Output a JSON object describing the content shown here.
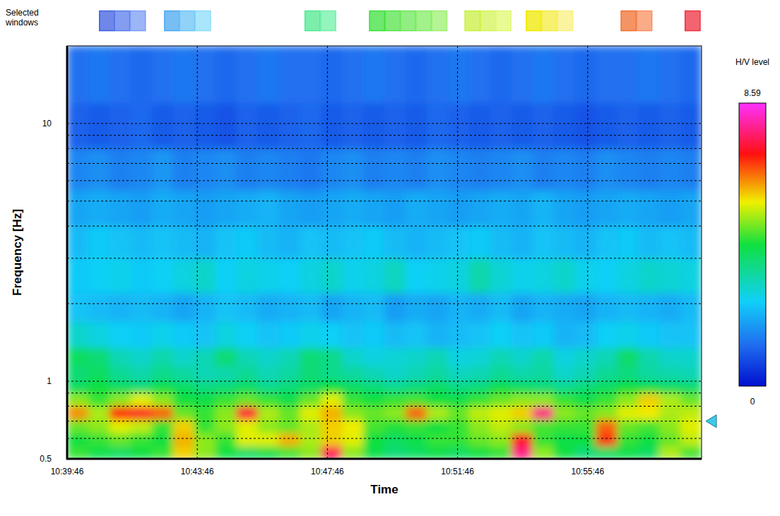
{
  "chart_data": {
    "type": "heatmap",
    "x_label": "Time",
    "y_label": "Frequency [Hz]",
    "log": "y",
    "grid": true,
    "xlim": [
      "10:39:46",
      "10:59:16"
    ],
    "xticks": [
      "10:39:46",
      "10:43:46",
      "10:47:46",
      "10:51:46",
      "10:55:46"
    ],
    "ylim": [
      0.5,
      20
    ],
    "yticks": [
      0.5,
      1,
      10
    ],
    "yminor": [
      0.6,
      0.7,
      0.8,
      0.9,
      2,
      3,
      4,
      5,
      6,
      7,
      8,
      9
    ],
    "x_edges": [
      "10:39:46",
      "10:40:25",
      "10:41:04",
      "10:41:43",
      "10:42:22",
      "10:43:01",
      "10:43:40",
      "10:44:19",
      "10:44:58",
      "10:45:37",
      "10:46:16",
      "10:46:55",
      "10:47:34",
      "10:48:13",
      "10:48:52",
      "10:49:31",
      "10:50:10",
      "10:50:49",
      "10:51:28",
      "10:52:07",
      "10:52:46",
      "10:53:25",
      "10:54:04",
      "10:54:43",
      "10:55:22",
      "10:56:01",
      "10:56:40",
      "10:57:19",
      "10:57:58",
      "10:58:37",
      "10:59:16"
    ],
    "y_edges": [
      0.5,
      0.56,
      0.63,
      0.71,
      0.8,
      0.9,
      1.0,
      1.15,
      1.35,
      1.7,
      2.2,
      3,
      4,
      5.5,
      8,
      12,
      20
    ],
    "values": [
      [
        4.5,
        4.2,
        4.0,
        4.3,
        4.5,
        5.8,
        5.0,
        4.3,
        4.0,
        4.2,
        4.6,
        5.0,
        7.5,
        5.0,
        4.2,
        3.8,
        4.0,
        4.2,
        4.0,
        4.3,
        4.5,
        7.8,
        5.0,
        4.3,
        3.8,
        4.0,
        4.2,
        4.0,
        5.2,
        4.6
      ],
      [
        4.3,
        4.5,
        4.8,
        4.5,
        4.3,
        6.0,
        5.0,
        4.5,
        5.5,
        5.5,
        6.0,
        5.2,
        5.8,
        5.5,
        4.3,
        4.0,
        4.2,
        4.5,
        4.5,
        4.8,
        5.0,
        7.2,
        4.5,
        4.2,
        4.3,
        6.8,
        4.5,
        4.3,
        4.8,
        5.3
      ],
      [
        4.8,
        5.0,
        5.5,
        5.3,
        4.5,
        5.8,
        4.5,
        5.0,
        5.5,
        5.0,
        4.8,
        5.2,
        5.8,
        5.6,
        4.6,
        4.4,
        4.5,
        4.3,
        4.5,
        5.0,
        5.3,
        5.0,
        4.6,
        4.5,
        4.5,
        6.5,
        4.8,
        4.6,
        5.0,
        5.5
      ],
      [
        6.2,
        5.2,
        7.0,
        7.2,
        6.5,
        4.8,
        4.5,
        5.0,
        7.3,
        5.2,
        4.8,
        5.5,
        6.0,
        5.0,
        4.8,
        5.0,
        6.5,
        5.2,
        4.8,
        5.3,
        5.5,
        5.8,
        7.8,
        5.0,
        4.8,
        5.0,
        5.5,
        5.6,
        5.2,
        5.3
      ],
      [
        5.0,
        4.5,
        5.0,
        5.5,
        5.0,
        4.3,
        4.2,
        4.5,
        4.8,
        4.5,
        4.2,
        4.8,
        5.5,
        4.5,
        4.3,
        4.5,
        4.6,
        4.3,
        4.2,
        4.5,
        4.8,
        5.0,
        5.0,
        4.5,
        4.2,
        4.5,
        5.0,
        5.8,
        5.2,
        4.8
      ],
      [
        4.0,
        4.3,
        4.0,
        3.8,
        4.2,
        4.0,
        3.7,
        3.8,
        4.0,
        3.6,
        3.8,
        4.0,
        4.3,
        4.0,
        3.8,
        3.6,
        3.8,
        4.0,
        3.7,
        3.8,
        4.2,
        4.0,
        3.8,
        3.6,
        3.8,
        4.0,
        4.3,
        4.2,
        4.0,
        3.9
      ],
      [
        3.8,
        4.0,
        3.5,
        3.3,
        3.6,
        3.4,
        3.2,
        3.3,
        3.5,
        3.2,
        3.4,
        3.8,
        3.6,
        3.4,
        3.2,
        3.0,
        3.2,
        3.4,
        3.1,
        3.2,
        3.5,
        3.3,
        3.4,
        3.0,
        3.2,
        3.5,
        3.7,
        3.4,
        3.3,
        3.2
      ],
      [
        4.0,
        3.8,
        3.2,
        3.0,
        3.3,
        3.0,
        3.2,
        3.8,
        3.2,
        3.0,
        3.2,
        3.8,
        3.6,
        3.0,
        2.8,
        2.9,
        3.0,
        3.2,
        2.8,
        2.9,
        3.2,
        3.0,
        3.3,
        2.8,
        3.0,
        3.2,
        3.9,
        3.3,
        3.0,
        3.0
      ],
      [
        3.0,
        2.8,
        2.6,
        2.5,
        2.7,
        2.5,
        2.4,
        2.8,
        2.6,
        2.4,
        2.5,
        2.7,
        2.6,
        2.4,
        2.5,
        2.3,
        2.4,
        2.2,
        2.3,
        2.4,
        2.6,
        2.4,
        2.5,
        2.2,
        2.3,
        2.6,
        2.7,
        2.5,
        2.4,
        2.4
      ],
      [
        2.4,
        2.3,
        2.2,
        2.3,
        2.2,
        2.0,
        2.2,
        2.4,
        2.3,
        2.1,
        2.2,
        2.3,
        2.0,
        2.2,
        2.3,
        1.9,
        2.1,
        2.0,
        2.2,
        2.1,
        2.3,
        2.0,
        2.2,
        2.1,
        2.0,
        2.2,
        2.3,
        2.2,
        2.1,
        2.3
      ],
      [
        2.5,
        2.6,
        2.7,
        2.5,
        2.6,
        2.8,
        3.0,
        2.6,
        2.8,
        2.7,
        2.6,
        2.8,
        3.0,
        2.7,
        2.8,
        3.1,
        2.6,
        2.7,
        2.8,
        3.3,
        2.9,
        2.7,
        2.8,
        3.0,
        2.7,
        2.6,
        2.8,
        3.0,
        2.9,
        2.8
      ],
      [
        2.3,
        2.5,
        2.4,
        2.3,
        2.4,
        2.3,
        2.2,
        2.4,
        2.5,
        2.3,
        2.2,
        2.4,
        2.3,
        2.4,
        2.5,
        2.3,
        2.2,
        2.3,
        2.4,
        2.5,
        2.3,
        2.2,
        2.4,
        2.3,
        2.2,
        2.4,
        2.5,
        2.3,
        2.4,
        2.3
      ],
      [
        2.0,
        2.1,
        2.0,
        1.9,
        2.1,
        2.0,
        1.9,
        2.0,
        2.1,
        2.2,
        2.0,
        1.9,
        2.0,
        2.1,
        2.0,
        1.9,
        2.1,
        2.0,
        1.9,
        2.0,
        2.1,
        2.0,
        2.2,
        2.0,
        1.9,
        2.0,
        2.1,
        2.0,
        1.9,
        2.0
      ],
      [
        1.6,
        1.7,
        1.5,
        1.6,
        1.8,
        1.5,
        1.6,
        1.7,
        1.5,
        1.6,
        1.5,
        1.4,
        1.6,
        1.7,
        1.5,
        1.6,
        1.5,
        1.7,
        1.6,
        1.5,
        1.6,
        1.7,
        1.5,
        1.6,
        1.5,
        1.7,
        1.6,
        1.5,
        1.6,
        1.5
      ],
      [
        1.1,
        1.0,
        1.1,
        1.2,
        1.0,
        1.1,
        1.0,
        0.9,
        1.1,
        1.0,
        1.1,
        1.2,
        1.0,
        1.1,
        1.0,
        1.1,
        1.0,
        1.2,
        1.1,
        1.0,
        1.1,
        1.0,
        1.1,
        1.0,
        0.9,
        1.0,
        1.1,
        1.0,
        1.1,
        1.0
      ],
      [
        1.3,
        1.4,
        1.3,
        1.2,
        1.3,
        1.4,
        1.3,
        1.2,
        1.3,
        1.4,
        1.3,
        1.3,
        1.2,
        1.3,
        1.4,
        1.3,
        1.2,
        1.3,
        1.4,
        1.3,
        1.2,
        1.3,
        1.4,
        1.3,
        1.2,
        1.3,
        1.3,
        1.4,
        1.3,
        1.2
      ]
    ],
    "colorbar": {
      "label": "H/V level",
      "range": [
        0,
        8.59
      ],
      "ticks": [
        0,
        8.59
      ]
    },
    "peak_frequency": 0.7,
    "selected_windows": {
      "label": "Selected windows",
      "window_length": 29,
      "start": [
        "10:40:45",
        "10:41:13",
        "10:41:42",
        "10:42:45",
        "10:43:13",
        "10:43:42",
        "10:47:04",
        "10:47:33",
        "10:49:03",
        "10:49:32",
        "10:50:00",
        "10:50:29",
        "10:50:58",
        "10:51:59",
        "10:52:28",
        "10:52:56",
        "10:53:52",
        "10:54:21",
        "10:54:50",
        "10:56:47",
        "10:57:16",
        "10:58:45"
      ],
      "colors": [
        "#3f5fe0",
        "#5a7cec",
        "#7a9cf4",
        "#4aa8f0",
        "#6cc4f6",
        "#8cdcfa",
        "#50e890",
        "#70f0a8",
        "#3ee03e",
        "#55e44a",
        "#6ce858",
        "#84ec64",
        "#9cf070",
        "#c8f040",
        "#d4f458",
        "#e0f870",
        "#f0e800",
        "#f4ec40",
        "#f8f080",
        "#f07030",
        "#f89060",
        "#f03040"
      ]
    }
  }
}
